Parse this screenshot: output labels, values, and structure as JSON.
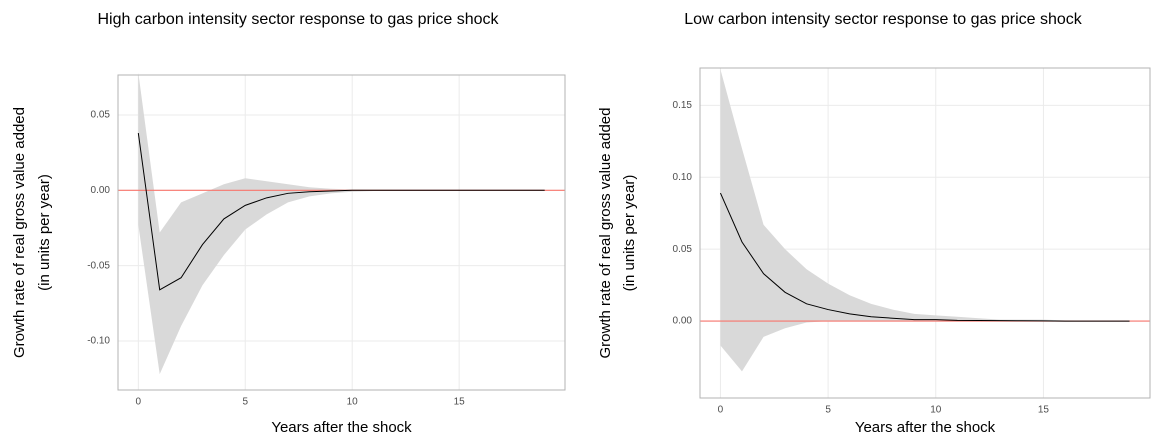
{
  "chart_data": [
    {
      "type": "line",
      "title": "High carbon intensity sector response to gas price shock",
      "x_label": "Years after the shock",
      "y_label": [
        "Growth rate of real gross value added",
        "(in units per year)"
      ],
      "x": [
        0,
        1,
        2,
        3,
        4,
        5,
        6,
        7,
        8,
        9,
        10,
        11,
        12,
        13,
        14,
        15,
        16,
        17,
        18,
        19
      ],
      "series": [
        {
          "color": "#000000",
          "values": [
            0.038,
            -0.066,
            -0.058,
            -0.036,
            -0.019,
            -0.01,
            -0.005,
            -0.002,
            -0.001,
            -0.0005,
            0,
            0,
            0,
            0,
            0,
            0,
            0,
            0,
            0,
            0
          ]
        }
      ],
      "band": {
        "color": "#d9d9d9",
        "upper": [
          0.078,
          -0.028,
          -0.008,
          -0.002,
          0.004,
          0.008,
          0.006,
          0.004,
          0.002,
          0.001,
          0.0005,
          0.0003,
          0.0002,
          0.0001,
          0,
          0,
          0,
          0,
          0,
          0
        ],
        "lower": [
          -0.023,
          -0.122,
          -0.09,
          -0.063,
          -0.043,
          -0.026,
          -0.016,
          -0.008,
          -0.004,
          -0.002,
          -0.001,
          -0.0005,
          -0.0003,
          -0.0002,
          -0.0001,
          0,
          0,
          0,
          0,
          0
        ]
      },
      "hline": 0,
      "hline_color": "#f8766d",
      "xlim": [
        -0.95,
        19.95
      ],
      "ylim": [
        -0.1325,
        0.0765
      ],
      "xticks": [
        0,
        5,
        10,
        15
      ],
      "yticks": [
        {
          "value": -0.1,
          "label": "-0.10"
        },
        -0.05,
        {
          "value": 0,
          "label": "0.00"
        },
        0.05
      ],
      "grid": true
    },
    {
      "type": "line",
      "title": "Low carbon intensity sector response to gas price shock",
      "x_label": "Years after the shock",
      "y_label": [
        "Growth rate of real gross value added",
        "(in units per year)"
      ],
      "x": [
        0,
        1,
        2,
        3,
        4,
        5,
        6,
        7,
        8,
        9,
        10,
        11,
        12,
        13,
        14,
        15,
        16,
        17,
        18,
        19
      ],
      "series": [
        {
          "color": "#000000",
          "values": [
            0.089,
            0.055,
            0.033,
            0.02,
            0.012,
            0.008,
            0.005,
            0.003,
            0.002,
            0.001,
            0.001,
            0.0005,
            0.0004,
            0.0003,
            0.0002,
            0.0001,
            0,
            0,
            0,
            0
          ]
        }
      ],
      "band": {
        "color": "#d9d9d9",
        "upper": [
          0.175,
          0.12,
          0.067,
          0.05,
          0.036,
          0.026,
          0.018,
          0.012,
          0.008,
          0.005,
          0.004,
          0.003,
          0.002,
          0.001,
          0.001,
          0.001,
          0.0005,
          0.0003,
          0.0002,
          0.0001
        ],
        "lower": [
          -0.017,
          -0.035,
          -0.011,
          -0.005,
          -0.001,
          0,
          0,
          0,
          0,
          0,
          0,
          0,
          0,
          0,
          0,
          0,
          0,
          0,
          0,
          0
        ]
      },
      "hline": 0,
      "hline_color": "#f8766d",
      "xlim": [
        -0.95,
        19.95
      ],
      "ylim": [
        -0.0535,
        0.176
      ],
      "xticks": [
        0,
        5,
        10,
        15
      ],
      "yticks": [
        {
          "value": 0,
          "label": "0.00"
        },
        0.05,
        {
          "value": 0.1,
          "label": "0.10"
        },
        0.15
      ],
      "grid": true
    }
  ]
}
